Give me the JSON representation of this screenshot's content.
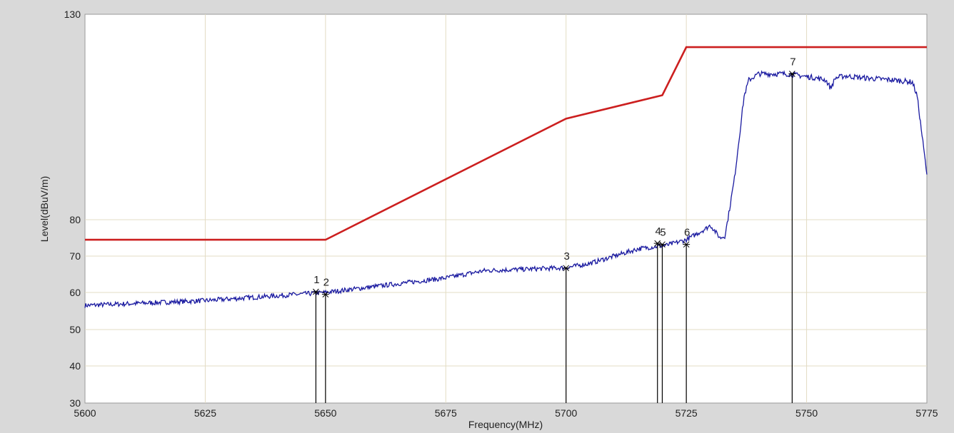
{
  "chart_data": {
    "type": "line",
    "title": "",
    "xlabel": "Frequency(MHz)",
    "ylabel": "Level(dBuV/m)",
    "xlim": [
      5600,
      5775
    ],
    "ylim": [
      30,
      130
    ],
    "x_ticks": [
      5600,
      5625,
      5650,
      5675,
      5700,
      5725,
      5750,
      5775
    ],
    "y_ticks": [
      30,
      40,
      50,
      60,
      70,
      80,
      130
    ],
    "grid": true,
    "legend": "none",
    "series": [
      {
        "color": "#cc1f1f",
        "x": [
          5600,
          5650,
          5700,
          5720,
          5725,
          5775
        ],
        "y": [
          74.5,
          74.5,
          104.6,
          110.3,
          122,
          122
        ]
      },
      {
        "color": "#1a1aa0",
        "x": [
          5600,
          5625,
          5650,
          5675,
          5683,
          5700,
          5705,
          5715,
          5721,
          5725,
          5729,
          5730,
          5732,
          5733,
          5735,
          5737,
          5738,
          5740,
          5746,
          5752,
          5754,
          5755,
          5756,
          5758,
          5762,
          5768,
          5772,
          5773,
          5775
        ],
        "y": [
          56.5,
          57.8,
          60,
          64,
          66,
          66.8,
          68,
          72,
          73,
          74.5,
          77.5,
          78.5,
          75,
          75.5,
          90,
          110,
          114,
          115.5,
          115.5,
          114.5,
          114,
          112,
          114.5,
          115,
          114.5,
          114,
          113.5,
          110,
          91
        ]
      }
    ],
    "markers": [
      {
        "label": "1",
        "x": 5648,
        "y": 60.2
      },
      {
        "label": "2",
        "x": 5650,
        "y": 59.5
      },
      {
        "label": "3",
        "x": 5700,
        "y": 66.7
      },
      {
        "label": "4",
        "x": 5719,
        "y": 73.5
      },
      {
        "label": "5",
        "x": 5720,
        "y": 73.2
      },
      {
        "label": "6",
        "x": 5725,
        "y": 73.2
      },
      {
        "label": "7",
        "x": 5747,
        "y": 115.5
      }
    ]
  }
}
